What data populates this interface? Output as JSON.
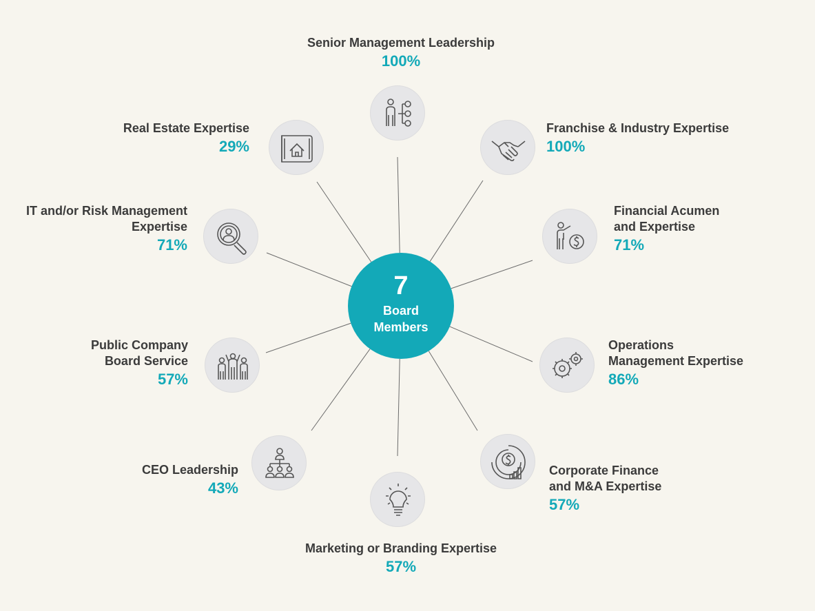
{
  "center": {
    "count": "7",
    "caption_line1": "Board",
    "caption_line2": "Members"
  },
  "skills": [
    {
      "label_lines": [
        "Senior Management Leadership"
      ],
      "percent": 100,
      "percent_label": "100%",
      "icon": "org-chart-person-icon"
    },
    {
      "label_lines": [
        "Franchise & Industry Expertise"
      ],
      "percent": 100,
      "percent_label": "100%",
      "icon": "handshake-icon"
    },
    {
      "label_lines": [
        "Financial Acumen",
        "and Expertise"
      ],
      "percent": 71,
      "percent_label": "71%",
      "icon": "presenter-dollar-icon"
    },
    {
      "label_lines": [
        "Operations",
        "Management Expertise"
      ],
      "percent": 86,
      "percent_label": "86%",
      "icon": "gears-icon"
    },
    {
      "label_lines": [
        "Corporate Finance",
        "and M&A Expertise"
      ],
      "percent": 57,
      "percent_label": "57%",
      "icon": "finance-chart-icon"
    },
    {
      "label_lines": [
        "Marketing or Branding Expertise"
      ],
      "percent": 57,
      "percent_label": "57%",
      "icon": "lightbulb-icon"
    },
    {
      "label_lines": [
        "CEO Leadership"
      ],
      "percent": 43,
      "percent_label": "43%",
      "icon": "hierarchy-icon"
    },
    {
      "label_lines": [
        "Public Company",
        "Board Service"
      ],
      "percent": 57,
      "percent_label": "57%",
      "icon": "celebrating-people-icon"
    },
    {
      "label_lines": [
        "IT and/or Risk Management",
        "Expertise"
      ],
      "percent": 71,
      "percent_label": "71%",
      "icon": "magnifier-person-icon"
    },
    {
      "label_lines": [
        "Real Estate Expertise"
      ],
      "percent": 29,
      "percent_label": "29%",
      "icon": "blueprint-house-icon"
    }
  ],
  "colors": {
    "accent": "#13a9b8",
    "text": "#3b3b3b",
    "node_fill": "#e6e6e8",
    "background": "#f7f5ee"
  }
}
